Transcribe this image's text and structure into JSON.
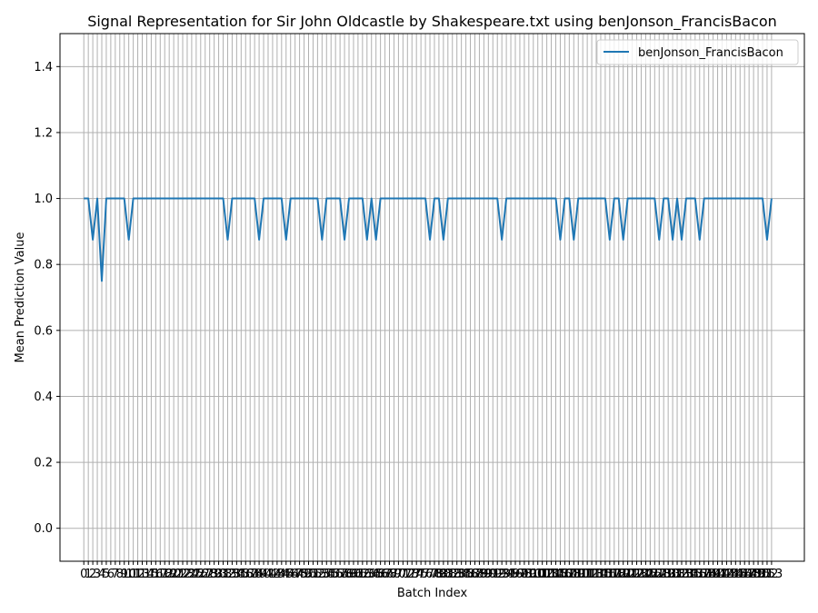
{
  "colors": {
    "line": "#1f77b4",
    "grid": "#b0b0b0",
    "axis": "#000000",
    "legend_border": "#cccccc"
  },
  "chart_data": {
    "type": "line",
    "title": "Signal Representation for Sir John Oldcastle by Shakespeare.txt using benJonson_FrancisBacon",
    "xlabel": "Batch Index",
    "ylabel": "Mean Prediction Value",
    "xlim": [
      -5.3,
      160.3
    ],
    "ylim": [
      -0.1,
      1.5
    ],
    "grid": true,
    "legend_position": "top-right",
    "y_ticks": [
      0.0,
      0.2,
      0.4,
      0.6,
      0.8,
      1.0,
      1.2,
      1.4
    ],
    "y_tick_labels": [
      "0.0",
      "0.2",
      "0.4",
      "0.6",
      "0.8",
      "1.0",
      "1.2",
      "1.4"
    ],
    "x_tick_start": 0,
    "x_tick_end": 153,
    "series": [
      {
        "name": "benJonson_FrancisBacon",
        "x_start": 0,
        "values": [
          1.0,
          1.0,
          0.875,
          1.0,
          0.75,
          1.0,
          1.0,
          1.0,
          1.0,
          1.0,
          0.875,
          1.0,
          1.0,
          1.0,
          1.0,
          1.0,
          1.0,
          1.0,
          1.0,
          1.0,
          1.0,
          1.0,
          1.0,
          1.0,
          1.0,
          1.0,
          1.0,
          1.0,
          1.0,
          1.0,
          1.0,
          1.0,
          0.875,
          1.0,
          1.0,
          1.0,
          1.0,
          1.0,
          1.0,
          0.875,
          1.0,
          1.0,
          1.0,
          1.0,
          1.0,
          0.875,
          1.0,
          1.0,
          1.0,
          1.0,
          1.0,
          1.0,
          1.0,
          0.875,
          1.0,
          1.0,
          1.0,
          1.0,
          0.875,
          1.0,
          1.0,
          1.0,
          1.0,
          0.875,
          1.0,
          0.875,
          1.0,
          1.0,
          1.0,
          1.0,
          1.0,
          1.0,
          1.0,
          1.0,
          1.0,
          1.0,
          1.0,
          0.875,
          1.0,
          1.0,
          0.875,
          1.0,
          1.0,
          1.0,
          1.0,
          1.0,
          1.0,
          1.0,
          1.0,
          1.0,
          1.0,
          1.0,
          1.0,
          0.875,
          1.0,
          1.0,
          1.0,
          1.0,
          1.0,
          1.0,
          1.0,
          1.0,
          1.0,
          1.0,
          1.0,
          1.0,
          0.875,
          1.0,
          1.0,
          0.875,
          1.0,
          1.0,
          1.0,
          1.0,
          1.0,
          1.0,
          1.0,
          0.875,
          1.0,
          1.0,
          0.875,
          1.0,
          1.0,
          1.0,
          1.0,
          1.0,
          1.0,
          1.0,
          0.875,
          1.0,
          1.0,
          0.875,
          1.0,
          0.875,
          1.0,
          1.0,
          1.0,
          0.875,
          1.0,
          1.0,
          1.0,
          1.0,
          1.0,
          1.0,
          1.0,
          1.0,
          1.0,
          1.0,
          1.0,
          1.0,
          1.0,
          1.0,
          0.875,
          1.0
        ]
      }
    ]
  }
}
